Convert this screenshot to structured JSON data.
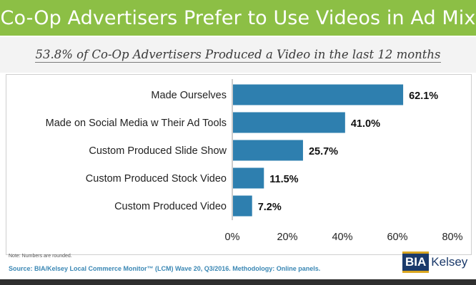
{
  "header": {
    "title": "Co-Op Advertisers Prefer to Use Videos in Ad Mix"
  },
  "subtitle": "53.8% of Co-Op Advertisers Produced a Video in the last 12 months",
  "chart_data": {
    "type": "bar",
    "orientation": "horizontal",
    "categories": [
      "Made Ourselves",
      "Made on Social Media w Their Ad Tools",
      "Custom Produced Slide Show",
      "Custom Produced Stock Video",
      "Custom Produced Video"
    ],
    "values": [
      62.1,
      41.0,
      25.7,
      11.5,
      7.2
    ],
    "value_labels": [
      "62.1%",
      "41.0%",
      "25.7%",
      "11.5%",
      "7.2%"
    ],
    "xticks": [
      "0%",
      "20%",
      "40%",
      "60%",
      "80%"
    ],
    "xlim": [
      0,
      80
    ],
    "grid": false,
    "bar_color": "#2e7faf"
  },
  "footer": {
    "note": "Note: Numbers are rounded.",
    "source": "Source: BIA/Kelsey Local Commerce Monitor™ (LCM) Wave 20, Q3/2016. Methodology: Online panels.",
    "logo": {
      "left": "BIA",
      "right": "Kelsey"
    }
  },
  "colors": {
    "header_bg": "#8cbf45",
    "source_text": "#3a87b4",
    "logo_navy": "#1b3a6b",
    "logo_gold": "#d9a520"
  }
}
